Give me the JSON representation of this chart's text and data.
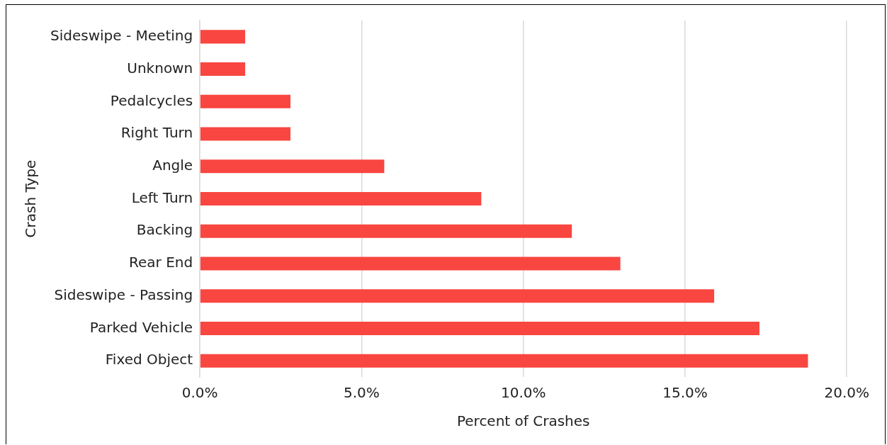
{
  "chart_data": {
    "type": "bar",
    "orientation": "horizontal",
    "xlabel": "Percent of Crashes",
    "ylabel": "Crash Type",
    "categories": [
      "Sideswipe - Meeting",
      "Unknown",
      "Pedalcycles",
      "Right Turn",
      "Angle",
      "Left Turn",
      "Backing",
      "Rear End",
      "Sideswipe - Passing",
      "Parked Vehicle",
      "Fixed Object"
    ],
    "values": [
      1.4,
      1.4,
      2.8,
      2.8,
      5.7,
      8.7,
      11.5,
      13.0,
      15.9,
      17.3,
      18.8
    ],
    "color": "#f94640",
    "xlim": [
      0,
      20
    ],
    "xticks": [
      {
        "value": 0,
        "label": "0.0%"
      },
      {
        "value": 5,
        "label": "5.0%"
      },
      {
        "value": 10,
        "label": "10.0%"
      },
      {
        "value": 15,
        "label": "15.0%"
      },
      {
        "value": 20,
        "label": "20.0%"
      }
    ],
    "grid": "x",
    "legend": false
  }
}
